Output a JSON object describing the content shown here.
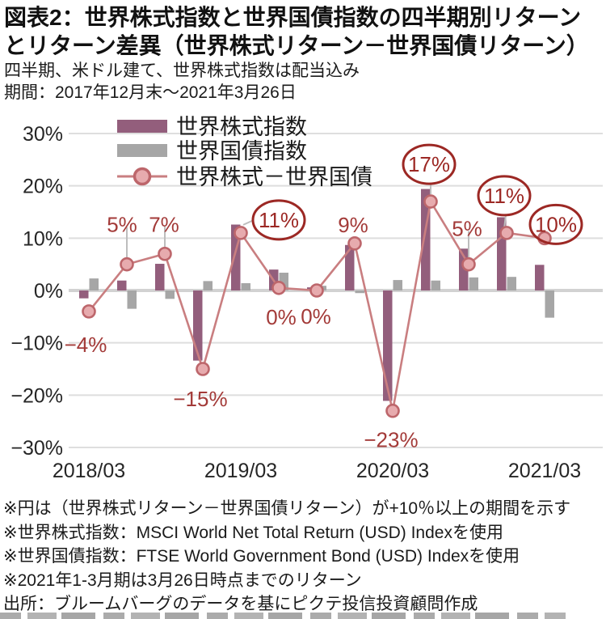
{
  "header": {
    "title_line1": "図表2：世界株式指数と世界国債指数の四半期別リターン",
    "title_line2": "とリターン差異（世界株式リターン－世界国債リターン）",
    "subtitle_line1": "四半期、米ドル建て、世界株式指数は配当込み",
    "subtitle_line2": "期間：2017年12月末～2021年3月26日"
  },
  "chart_data": {
    "type": "combo-bar-line",
    "title": "世界株式指数と世界国債指数の四半期別リターンとリターン差異",
    "x_tick_labels": [
      "2018/03",
      "2019/03",
      "2020/03",
      "2021/03"
    ],
    "x_tick_slot_indices": [
      0,
      4,
      8,
      12
    ],
    "n_quarters": 13,
    "y_ticks": [
      {
        "label": "30%",
        "value": 30
      },
      {
        "label": "20%",
        "value": 20
      },
      {
        "label": "10%",
        "value": 10
      },
      {
        "label": "0%",
        "value": 0
      },
      {
        "label": "−10%",
        "value": -10
      },
      {
        "label": "−20%",
        "value": -20
      },
      {
        "label": "−30%",
        "value": -30
      }
    ],
    "ylim": [
      -30,
      30
    ],
    "grid": true,
    "legend_position": "top-left-inside",
    "series": [
      {
        "name": "世界株式指数",
        "type": "bar",
        "color": "#935E7C",
        "values": [
          -1.5,
          1.9,
          5.1,
          -13.4,
          12.6,
          4.0,
          0.6,
          8.7,
          -21.1,
          19.4,
          8.0,
          14.0,
          4.9
        ]
      },
      {
        "name": "世界国債指数",
        "type": "bar",
        "color": "#A6A6A6",
        "values": [
          2.3,
          -3.5,
          -1.6,
          1.8,
          1.4,
          3.4,
          0.9,
          -0.5,
          2.0,
          1.9,
          2.5,
          2.6,
          -5.2
        ]
      },
      {
        "name": "世界株式－世界国債",
        "type": "line",
        "color": "#C97E80",
        "marker_fill": "#E7ABAE",
        "marker_stroke": "#BD666B",
        "values": [
          -4,
          5,
          7,
          -15,
          11,
          0.5,
          0,
          9,
          -23,
          17,
          5,
          11,
          10
        ]
      }
    ],
    "point_labels": [
      {
        "text": "−4%",
        "circled": false
      },
      {
        "text": "5%",
        "circled": false
      },
      {
        "text": "7%",
        "circled": false
      },
      {
        "text": "−15%",
        "circled": false
      },
      {
        "text": "11%",
        "circled": true
      },
      {
        "text": "0%",
        "circled": false
      },
      {
        "text": "0%",
        "circled": false
      },
      {
        "text": "9%",
        "circled": false
      },
      {
        "text": "−23%",
        "circled": false
      },
      {
        "text": "17%",
        "circled": true
      },
      {
        "text": "5%",
        "circled": false
      },
      {
        "text": "11%",
        "circled": true
      },
      {
        "text": "10%",
        "circled": true
      }
    ],
    "colors": {
      "plain_label": "#A33A38",
      "circle_annotation": "#9C2824",
      "gridline": "#DEDEDE",
      "zero_line": "#D2D2D2",
      "leader_line": "#BDBDBD",
      "axis_text": "#262626"
    }
  },
  "footnotes": [
    "※円は（世界株式リターン－世界国債リターン）が+10％以上の期間を示す",
    "※世界株式指数：MSCI World Net Total Return (USD) Indexを使用",
    "※世界国債指数：FTSE World Government Bond (USD) Indexを使用",
    "※2021年1-3月期は3月26日時点までのリターン",
    "出所：ブルームバーグのデータを基にピクテ投信投資顧問作成"
  ]
}
